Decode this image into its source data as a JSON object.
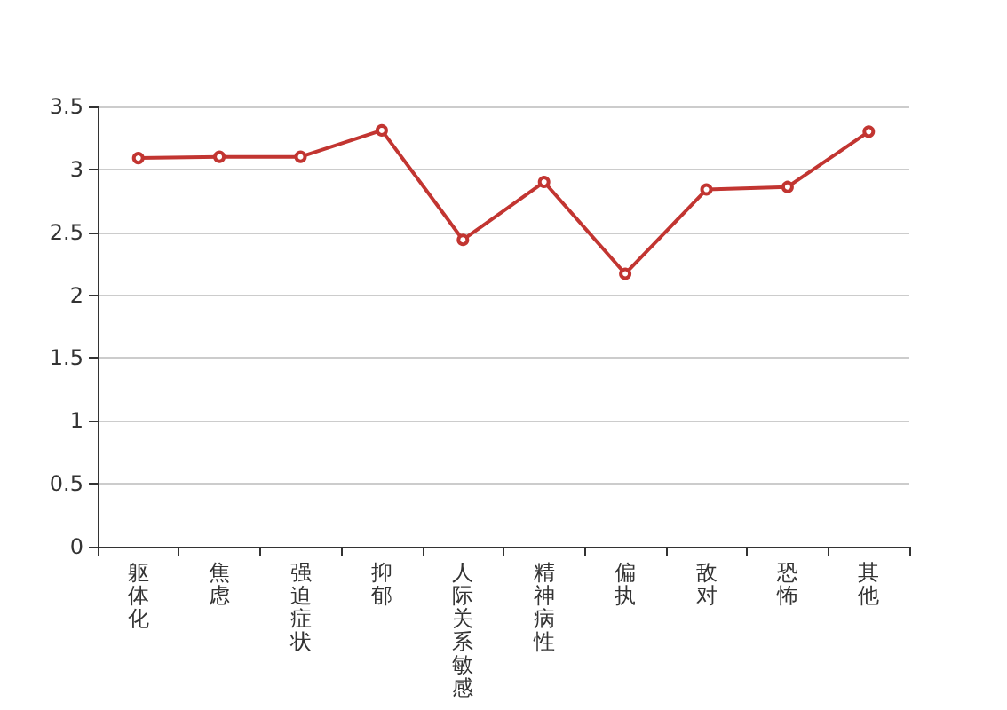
{
  "chart_data": {
    "type": "line",
    "categories": [
      "躯体化",
      "焦虑",
      "强迫症状",
      "抑郁",
      "人际关系敏感",
      "精神病性",
      "偏执",
      "敌对",
      "恐怖",
      "其他"
    ],
    "series": [
      {
        "color": "#c23531",
        "values": [
          3.09,
          3.1,
          3.1,
          3.31,
          2.44,
          2.9,
          2.17,
          2.84,
          2.86,
          3.3
        ]
      }
    ],
    "ylim": [
      0,
      3.5
    ],
    "yticks": [
      0,
      0.5,
      1,
      1.5,
      2,
      2.5,
      3,
      3.5
    ],
    "grid": "y",
    "marker": "circle",
    "line_style": "solid"
  }
}
